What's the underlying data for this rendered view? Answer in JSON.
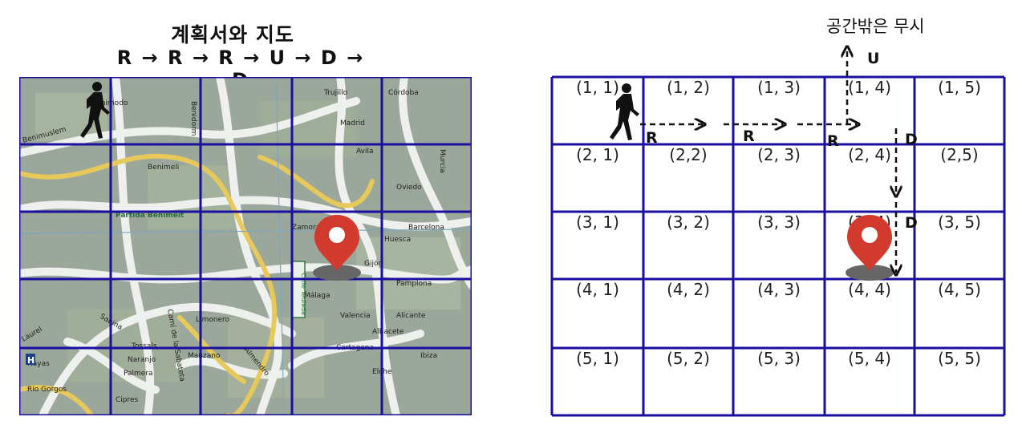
{
  "left": {
    "title": "계획서와 지도",
    "plan": "R → R → R → U → D → D"
  },
  "right": {
    "note": "공간밖은 무시",
    "cells": [
      [
        "(1, 1)",
        "(1, 2)",
        "(1, 3)",
        "(1, 4)",
        "(1, 5)"
      ],
      [
        "(2, 1)",
        "(2,2)",
        "(2, 3)",
        "(2, 4)",
        "(2,5)"
      ],
      [
        "(3, 1)",
        "(3, 2)",
        "(3, 3)",
        "(3, 4)",
        "(3, 5)"
      ],
      [
        "(4, 1)",
        "(4, 2)",
        "(4, 3)",
        "(4, 4)",
        "(4, 5)"
      ],
      [
        "(5, 1)",
        "(5, 2)",
        "(5, 3)",
        "(5, 4)",
        "(5, 5)"
      ]
    ],
    "moves": [
      "R",
      "R",
      "R",
      "U",
      "D",
      "D"
    ]
  },
  "map_labels": [
    "Benimodo",
    "Benimuslem",
    "Benidorm",
    "Benimeli",
    "Partida Benimeit",
    "Trujillo",
    "Córdoba",
    "Barcelona",
    "Gijón",
    "Oviedo",
    "Málaga",
    "Zamora",
    "Cartagena",
    "Laurel",
    "Sabina",
    "Naranjo",
    "Palmera",
    "Cipres",
    "Manzano",
    "Almendro",
    "Camí de la Sabateta",
    "Madrid",
    "Avila",
    "Murcia",
    "Huesca",
    "Pamplona",
    "Valencia",
    "Albacete",
    "Elche",
    "Rio Gorgos",
    "Tossals",
    "Alicante",
    "Ibiza",
    "Hayas",
    "Limonero",
    "Calle Teulada"
  ],
  "colors": {
    "grid": "#1b0fa0",
    "pin": "#d23a2e",
    "pin_shadow": "#666666"
  },
  "icons": [
    "walking-person-icon",
    "location-pin-icon"
  ]
}
